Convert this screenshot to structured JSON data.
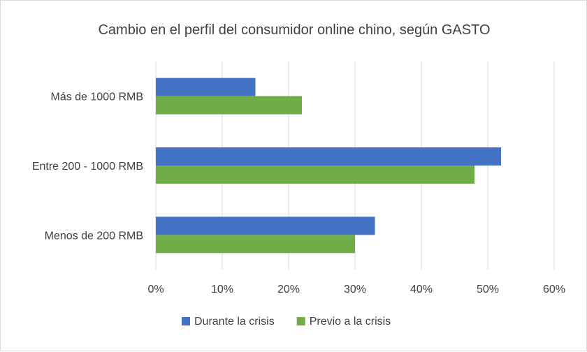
{
  "chart_data": {
    "type": "bar",
    "orientation": "horizontal",
    "title": "Cambio en el perfil del consumidor online chino, según GASTO",
    "xlabel": "",
    "ylabel": "",
    "categories": [
      "Más de 1000 RMB",
      "Entre 200 - 1000 RMB",
      "Menos de 200 RMB"
    ],
    "series": [
      {
        "name": "Durante la crisis",
        "color": "#4472c4",
        "values": [
          15,
          52,
          33
        ]
      },
      {
        "name": "Previo a la crisis",
        "color": "#70ad47",
        "values": [
          22,
          48,
          30
        ]
      }
    ],
    "xlim": [
      0,
      60
    ],
    "x_ticks": [
      "0%",
      "10%",
      "20%",
      "30%",
      "40%",
      "50%",
      "60%"
    ],
    "x_tick_values": [
      0,
      10,
      20,
      30,
      40,
      50,
      60
    ],
    "value_format": "percent",
    "grid": true,
    "legend_position": "bottom"
  }
}
